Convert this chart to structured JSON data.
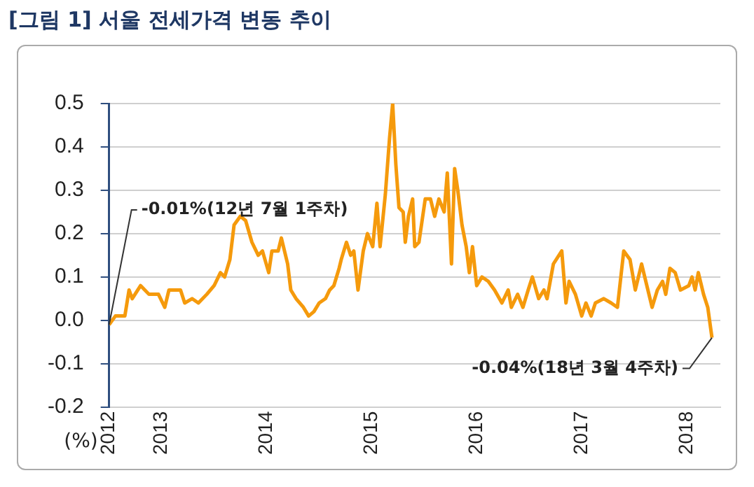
{
  "chart_data": {
    "type": "line",
    "title": "[그림 1] 서울 전세가격 변동 추이",
    "ylabel": "(%)",
    "x": [
      2012.5,
      2012.56,
      2012.65,
      2012.69,
      2012.72,
      2012.8,
      2012.88,
      2012.97,
      2013.03,
      2013.07,
      2013.18,
      2013.22,
      2013.29,
      2013.35,
      2013.43,
      2013.5,
      2013.56,
      2013.6,
      2013.65,
      2013.69,
      2013.75,
      2013.8,
      2013.86,
      2013.92,
      2013.96,
      2014.02,
      2014.05,
      2014.11,
      2014.14,
      2014.2,
      2014.23,
      2014.28,
      2014.35,
      2014.4,
      2014.45,
      2014.5,
      2014.56,
      2014.6,
      2014.64,
      2014.69,
      2014.71,
      2014.76,
      2014.8,
      2014.83,
      2014.87,
      2014.92,
      2014.96,
      2015.01,
      2015.05,
      2015.08,
      2015.13,
      2015.17,
      2015.2,
      2015.23,
      2015.26,
      2015.3,
      2015.32,
      2015.35,
      2015.39,
      2015.41,
      2015.45,
      2015.51,
      2015.56,
      2015.6,
      2015.64,
      2015.69,
      2015.72,
      2015.76,
      2015.79,
      2015.82,
      2015.86,
      2015.9,
      2015.93,
      2015.96,
      2016.0,
      2016.05,
      2016.11,
      2016.17,
      2016.24,
      2016.3,
      2016.33,
      2016.39,
      2016.44,
      2016.49,
      2016.53,
      2016.59,
      2016.64,
      2016.67,
      2016.73,
      2016.81,
      2016.85,
      2016.88,
      2016.94,
      2017.0,
      2017.04,
      2017.09,
      2017.13,
      2017.21,
      2017.28,
      2017.34,
      2017.4,
      2017.46,
      2017.51,
      2017.57,
      2017.6,
      2017.67,
      2017.72,
      2017.77,
      2017.8,
      2017.84,
      2017.89,
      2017.94,
      2018.02,
      2018.05,
      2018.08,
      2018.11,
      2018.16,
      2018.2,
      2018.24
    ],
    "series": [
      {
        "color": "#f59a0c",
        "values": [
          -0.01,
          0.01,
          0.01,
          0.07,
          0.05,
          0.08,
          0.06,
          0.06,
          0.03,
          0.07,
          0.07,
          0.04,
          0.05,
          0.04,
          0.06,
          0.08,
          0.11,
          0.1,
          0.14,
          0.22,
          0.24,
          0.23,
          0.18,
          0.15,
          0.16,
          0.11,
          0.16,
          0.16,
          0.19,
          0.13,
          0.07,
          0.05,
          0.03,
          0.01,
          0.02,
          0.04,
          0.05,
          0.07,
          0.08,
          0.12,
          0.14,
          0.18,
          0.15,
          0.16,
          0.07,
          0.16,
          0.2,
          0.17,
          0.27,
          0.17,
          0.29,
          0.42,
          0.5,
          0.36,
          0.26,
          0.25,
          0.18,
          0.24,
          0.28,
          0.17,
          0.18,
          0.28,
          0.28,
          0.24,
          0.28,
          0.25,
          0.34,
          0.13,
          0.35,
          0.3,
          0.22,
          0.17,
          0.11,
          0.17,
          0.08,
          0.1,
          0.09,
          0.07,
          0.04,
          0.07,
          0.03,
          0.06,
          0.03,
          0.07,
          0.1,
          0.05,
          0.07,
          0.05,
          0.13,
          0.16,
          0.04,
          0.09,
          0.06,
          0.01,
          0.04,
          0.01,
          0.04,
          0.05,
          0.04,
          0.03,
          0.16,
          0.14,
          0.07,
          0.13,
          0.1,
          0.03,
          0.07,
          0.09,
          0.06,
          0.12,
          0.11,
          0.07,
          0.08,
          0.1,
          0.07,
          0.11,
          0.06,
          0.03,
          -0.04
        ]
      }
    ],
    "xlim": [
      2012.5,
      2018.32
    ],
    "xticks": [
      {
        "value": 2012.5,
        "label": "2012"
      },
      2013,
      2014,
      2015,
      2016,
      2017,
      2018
    ],
    "ylim": [
      -0.2,
      0.5
    ],
    "yticks": [
      {
        "value": -0.2,
        "label": "-0.2"
      },
      {
        "value": -0.1,
        "label": "-0.1"
      },
      {
        "value": 0,
        "label": "0.0"
      },
      {
        "value": 0.1,
        "label": "0.1"
      },
      {
        "value": 0.2,
        "label": "0.2"
      },
      {
        "value": 0.3,
        "label": "0.3"
      },
      {
        "value": 0.4,
        "label": "0.4"
      },
      {
        "value": 0.5,
        "label": "0.5"
      }
    ],
    "grid": "y",
    "legend": false,
    "marker": "none",
    "line_style": "solid",
    "annotations": [
      {
        "text": "-0.01%(12년 7월 1주차)",
        "x": 2012.5,
        "y": -0.01
      },
      {
        "text": "-0.04%(18년 3월 4주차)",
        "x": 2018.24,
        "y": -0.04
      }
    ]
  }
}
